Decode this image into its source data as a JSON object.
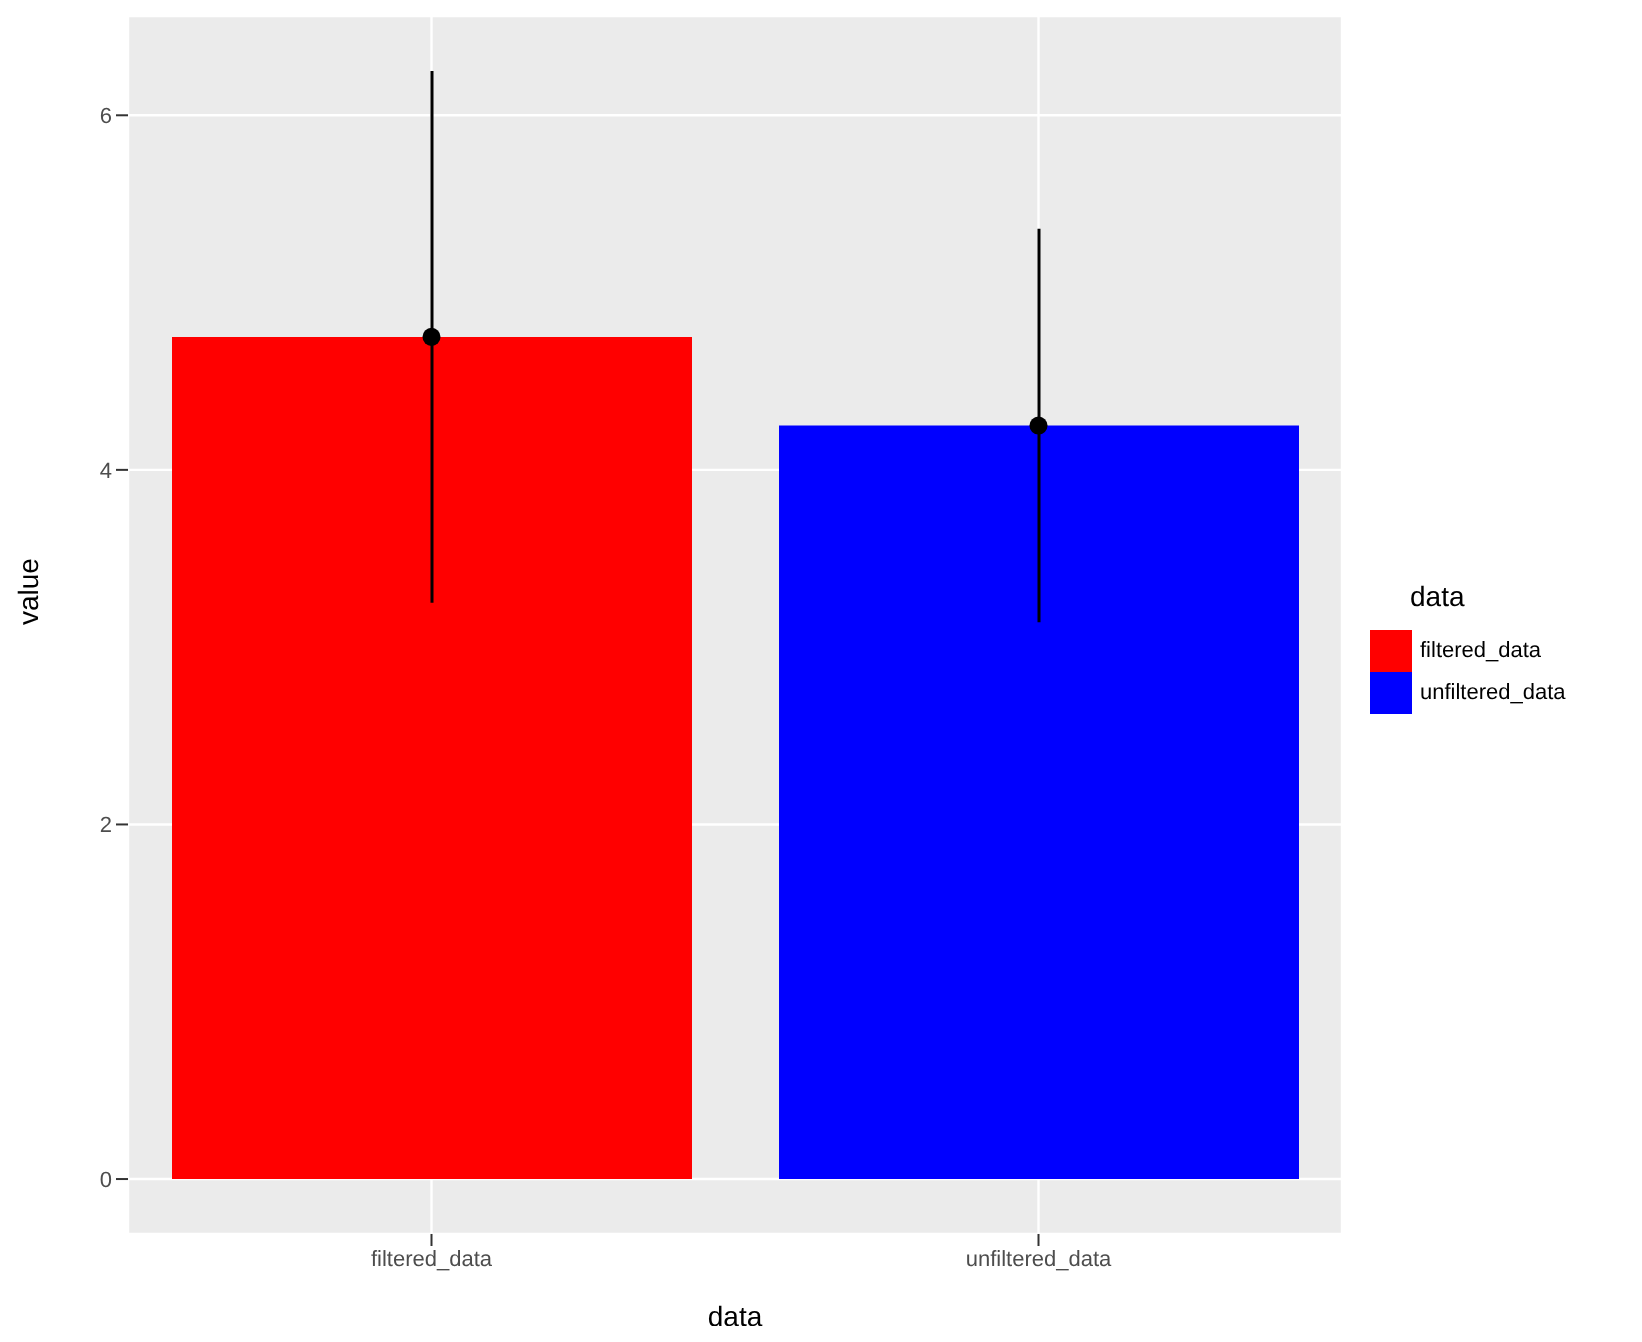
{
  "chart_data": {
    "type": "bar",
    "stacked": true,
    "xlabel": "data",
    "ylabel": "value",
    "legend_title": "data",
    "categories": [
      "filtered_data",
      "unfiltered_data"
    ],
    "series": [
      {
        "name": "filtered_data",
        "color": "#ff0000",
        "values": [
          4.75,
          null
        ],
        "errors": [
          1.5,
          null
        ]
      },
      {
        "name": "unfiltered_data",
        "color": "#0000ff",
        "values": [
          null,
          4.25
        ],
        "errors": [
          null,
          1.11
        ]
      },
      {
        "type": "scatter",
        "color": "#000000",
        "values": [
          4.75,
          4.25
        ]
      }
    ],
    "ylim": [
      -0.31,
      6.56
    ],
    "yticks": [
      0,
      2,
      4,
      6
    ],
    "grid": true,
    "legend": "right",
    "marker": "circle"
  }
}
